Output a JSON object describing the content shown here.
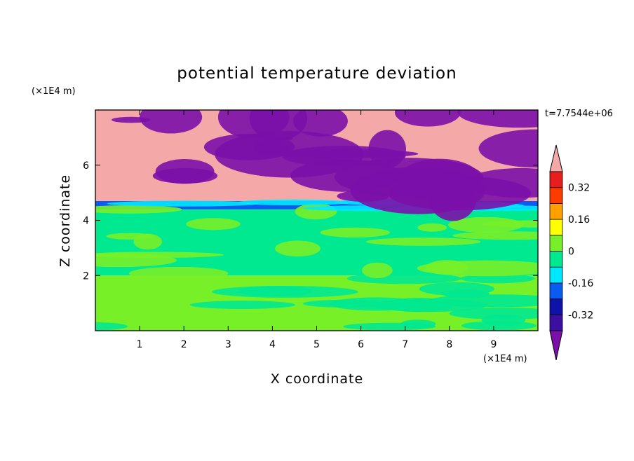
{
  "chart_data": {
    "type": "heatmap",
    "title": "potential temperature deviation",
    "xlabel": "X coordinate",
    "ylabel": "Z coordinate",
    "x_unit": "(×1E4 m)",
    "y_unit": "(×1E4 m)",
    "time_label": "t=7.7544e+06",
    "xlim": [
      0,
      10
    ],
    "ylim": [
      0,
      8
    ],
    "x_ticks": [
      1,
      2,
      3,
      4,
      5,
      6,
      7,
      8,
      9
    ],
    "y_ticks": [
      2,
      4,
      6
    ],
    "legend_position": "right",
    "colorbar": {
      "levels": [
        -0.4,
        -0.32,
        -0.24,
        -0.16,
        -0.08,
        0,
        0.08,
        0.16,
        0.24,
        0.32,
        0.4
      ],
      "colors": [
        "#7b0fa8",
        "#3c0fa0",
        "#0f12a8",
        "#0a5cf0",
        "#00e8ff",
        "#00e890",
        "#78f028",
        "#ffff00",
        "#ffa000",
        "#ff3c00",
        "#e81e1e",
        "#f5a8a8"
      ],
      "tick_labels": [
        "0.32",
        "0.16",
        "0",
        "-0.16",
        "-0.32"
      ],
      "tick_values": [
        0.32,
        0.16,
        0,
        -0.16,
        -0.32
      ]
    },
    "bands": [
      {
        "z": [
          0,
          2.0
        ],
        "color": "#78f028",
        "patch_color": "#00e890"
      },
      {
        "z": [
          2.0,
          4.4
        ],
        "color": "#00e890",
        "patch_color": "#78f028"
      },
      {
        "z": [
          4.4,
          4.7
        ],
        "color": "#0a5cf0",
        "patch_color": "#00e8ff"
      },
      {
        "z": [
          4.7,
          8.0
        ],
        "color": "#f5a8a8",
        "patch_color": "#7b0fa8"
      }
    ]
  }
}
